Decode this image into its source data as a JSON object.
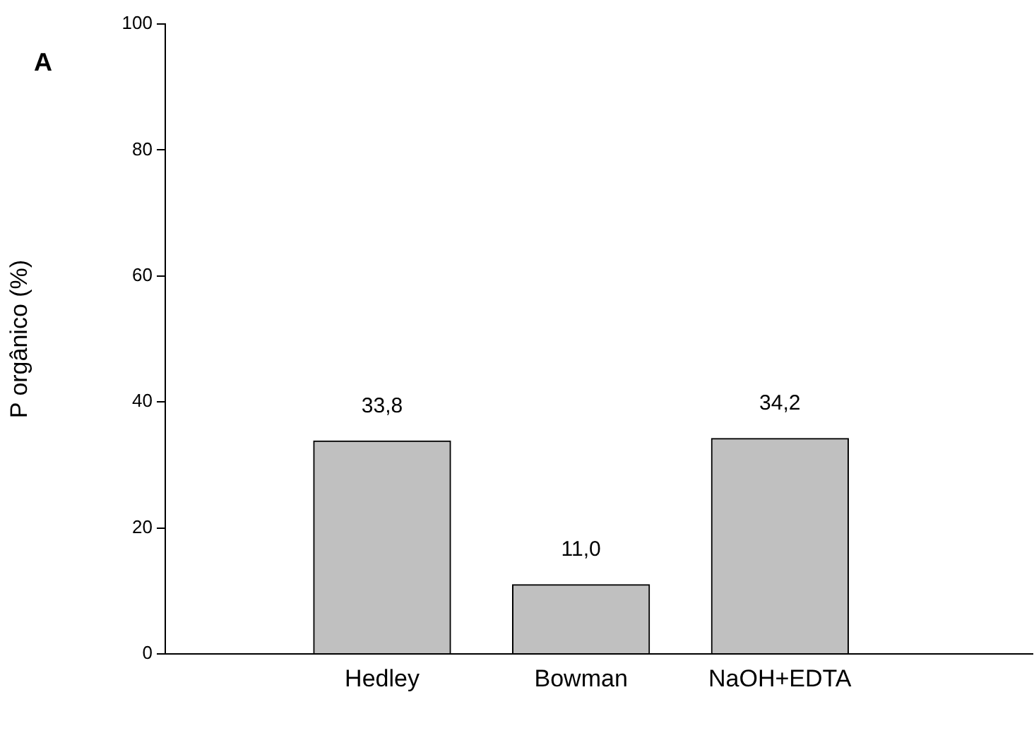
{
  "chart_data": {
    "type": "bar",
    "ylabel": "P orgânico (%)",
    "annotations": [
      "A"
    ],
    "categories": [
      "Hedley",
      "Bowman",
      "NaOH+EDTA"
    ],
    "values": [
      33.8,
      11.0,
      34.2
    ],
    "value_labels": [
      "33,8",
      "11,0",
      "34,2"
    ],
    "color": "#c0c0c0",
    "ylim": [
      0,
      100
    ],
    "yticks": [
      0,
      20,
      40,
      60,
      80,
      100
    ],
    "grid": false,
    "legend": false
  }
}
